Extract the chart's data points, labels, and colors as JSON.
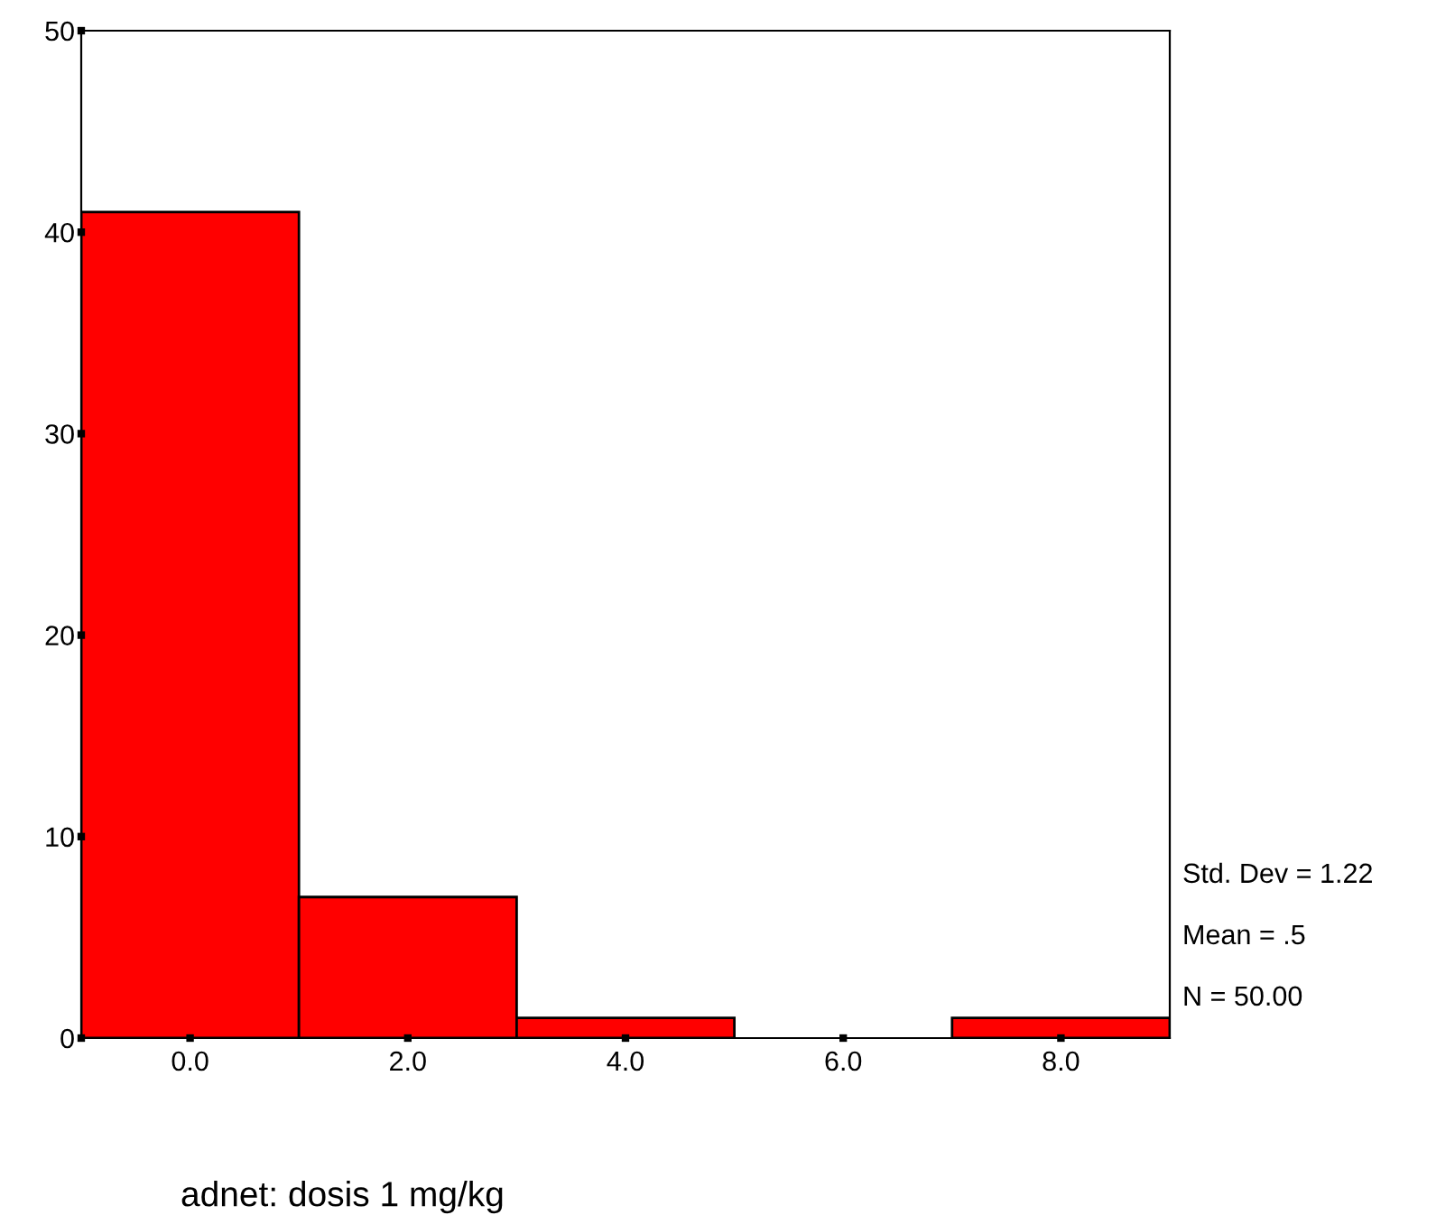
{
  "chart_data": {
    "type": "histogram",
    "xlabel": "adnet: dosis 1 mg/kg",
    "bins": [
      -1,
      1,
      3,
      5,
      7,
      9
    ],
    "values": [
      41,
      7,
      1,
      0,
      1
    ],
    "color": "#ff0000",
    "xlim": [
      -1,
      9
    ],
    "xticks": [
      {
        "value": 0,
        "label": "0.0"
      },
      {
        "value": 2,
        "label": "2.0"
      },
      {
        "value": 4,
        "label": "4.0"
      },
      {
        "value": 6,
        "label": "6.0"
      },
      {
        "value": 8,
        "label": "8.0"
      }
    ],
    "ylim": [
      0,
      50
    ],
    "yticks": [
      0,
      10,
      20,
      30,
      40,
      50
    ],
    "grid": false,
    "legend": false,
    "annotations": [
      "Std. Dev = 1.22",
      "Mean = .5",
      "N = 50.00"
    ]
  }
}
